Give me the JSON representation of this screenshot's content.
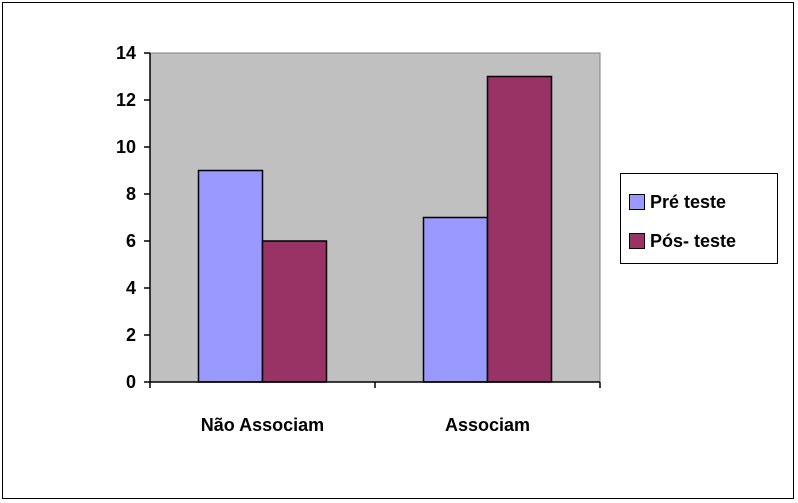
{
  "chart_data": {
    "type": "bar",
    "categories": [
      "Não Associam",
      "Associam"
    ],
    "series": [
      {
        "name": "Pré teste",
        "values": [
          9,
          7
        ],
        "color": "#9999ff"
      },
      {
        "name": "Pós- teste",
        "values": [
          6,
          13
        ],
        "color": "#993366"
      }
    ],
    "ylim": [
      0,
      14
    ],
    "yticks": [
      0,
      2,
      4,
      6,
      8,
      10,
      12,
      14
    ],
    "plot_background": "#c0c0c0",
    "grid": false,
    "legend_position": "right"
  }
}
